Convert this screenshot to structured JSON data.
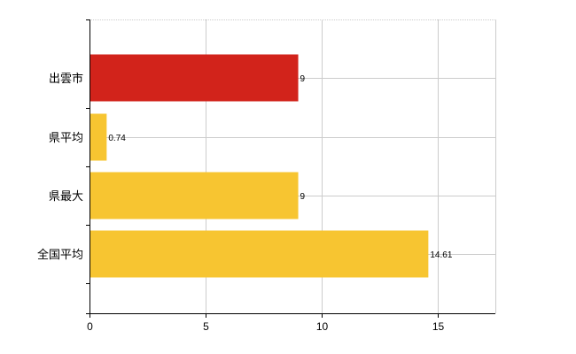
{
  "chart_data": {
    "type": "bar",
    "orientation": "horizontal",
    "categories": [
      "出雲市",
      "県平均",
      "県最大",
      "全国平均"
    ],
    "values": [
      9,
      0.74,
      9,
      14.61
    ],
    "value_labels": [
      "9",
      "0.74",
      "9",
      "14.61"
    ],
    "bar_colors": [
      "#d2231b",
      "#f7c531",
      "#f7c531",
      "#f7c531"
    ],
    "xlim": [
      0,
      17.5
    ],
    "xticks": [
      0,
      5,
      10,
      15
    ],
    "xtick_labels": [
      "0",
      "5",
      "10",
      "15"
    ],
    "grid": true,
    "title": "",
    "xlabel": "",
    "ylabel": ""
  }
}
